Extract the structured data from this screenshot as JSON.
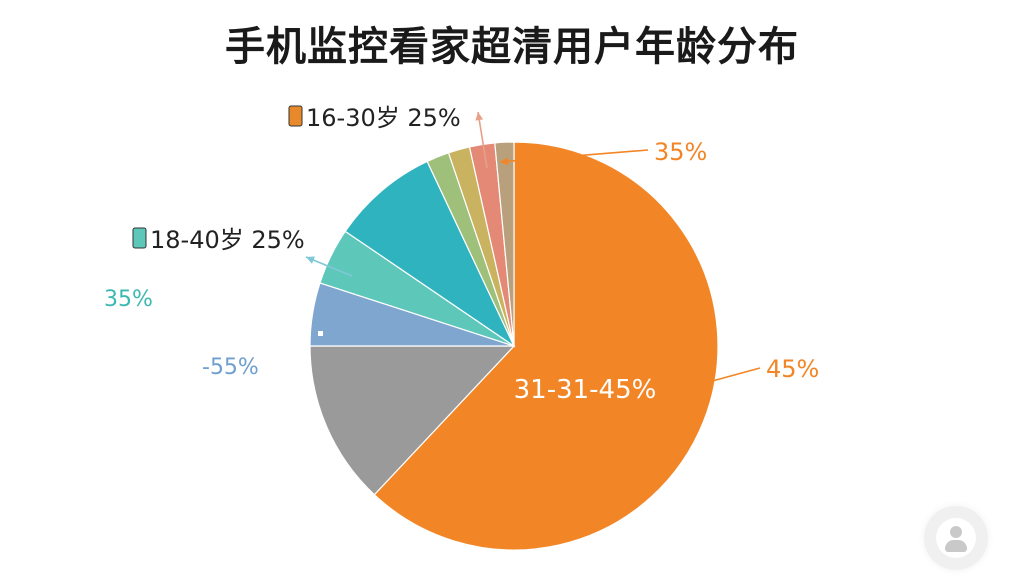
{
  "chart_data": {
    "type": "pie",
    "title": "手机监控看家超清用户年龄分布",
    "slices": [
      {
        "label": "",
        "value": 62.0,
        "color": "#F28627"
      },
      {
        "label": "",
        "value": 13.0,
        "color": "#9A9A9A"
      },
      {
        "label": "",
        "value": 5.0,
        "color": "#7FA6CF"
      },
      {
        "label": "",
        "value": 4.5,
        "color": "#5DC7BA"
      },
      {
        "label": "",
        "value": 8.5,
        "color": "#2FB3BF"
      },
      {
        "label": "",
        "value": 1.8,
        "color": "#9EC07A"
      },
      {
        "label": "",
        "value": 1.7,
        "color": "#C9B260"
      },
      {
        "label": "",
        "value": 2.0,
        "color": "#E38976"
      },
      {
        "label": "",
        "value": 1.5,
        "color": "#B9A07C"
      }
    ],
    "center_label": "31-31-45%",
    "annotations": [
      {
        "text": "35%",
        "color": "#F28627"
      },
      {
        "text": "45%",
        "color": "#F28627"
      },
      {
        "text": "16-30岁 25%",
        "color": "#222222",
        "icon": "book-icon",
        "icon_color": "#E8892B"
      },
      {
        "text": "18-40岁 25%",
        "color": "#222222",
        "icon": "grid-icon",
        "icon_color": "#5DC7BA"
      },
      {
        "text": "35%",
        "color": "#3CB8B0"
      },
      {
        "text": "-55%",
        "color": "#6F9FD0"
      }
    ]
  }
}
